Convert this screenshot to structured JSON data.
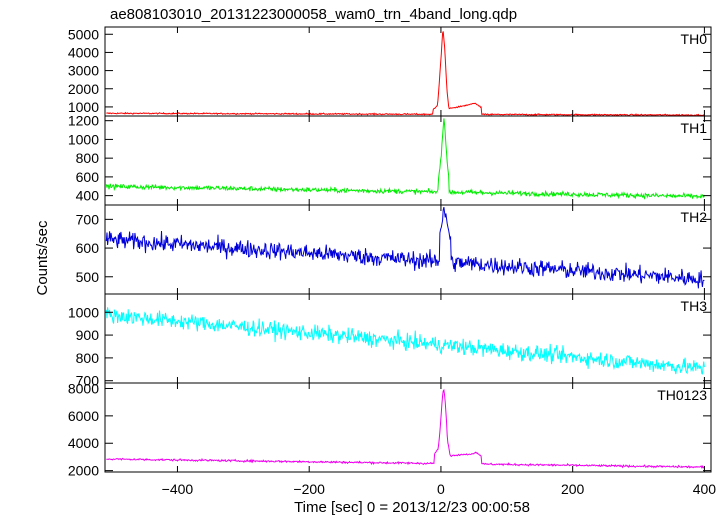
{
  "chart_data": {
    "type": "line",
    "title": "ae808103010_20131223000058_wam0_trn_4band_long.qdp",
    "xlabel": "Time [sec] 0 = 2013/12/23 00:00:58",
    "ylabel": "Counts/sec",
    "xlim": [
      -510,
      410
    ],
    "x_ticks": [
      -400,
      -200,
      0,
      200,
      400
    ],
    "x_tick_labels": [
      "−400",
      "−200",
      "0",
      "200",
      "400"
    ],
    "grid": false,
    "line_color_note": "each panel a separate series",
    "panels": [
      {
        "name": "TH0",
        "color": "#ff0000",
        "ylim": [
          500,
          5400
        ],
        "yticks": [
          1000,
          2000,
          3000,
          4000,
          5000
        ],
        "baseline_start": 650,
        "baseline_end": 550,
        "noise": 35,
        "burst": [
          {
            "t": -12,
            "v": 850
          },
          {
            "t": -5,
            "v": 1100
          },
          {
            "t": -2,
            "v": 2600
          },
          {
            "t": 1,
            "v": 4200
          },
          {
            "t": 3,
            "v": 5350
          },
          {
            "t": 6,
            "v": 4100
          },
          {
            "t": 9,
            "v": 2000
          },
          {
            "t": 12,
            "v": 900
          },
          {
            "t": 40,
            "v": 1100
          },
          {
            "t": 52,
            "v": 1200
          },
          {
            "t": 62,
            "v": 950
          }
        ]
      },
      {
        "name": "TH1",
        "color": "#00ee00",
        "ylim": [
          300,
          1250
        ],
        "yticks": [
          400,
          600,
          800,
          1000,
          1200
        ],
        "baseline_start": 500,
        "baseline_end": 390,
        "noise": 25,
        "burst": [
          {
            "t": -4,
            "v": 560
          },
          {
            "t": 0,
            "v": 800
          },
          {
            "t": 3,
            "v": 1080
          },
          {
            "t": 5,
            "v": 1240
          },
          {
            "t": 8,
            "v": 900
          },
          {
            "t": 12,
            "v": 560
          }
        ]
      },
      {
        "name": "TH2",
        "color": "#0000dd",
        "ylim": [
          440,
          750
        ],
        "yticks": [
          500,
          600,
          700
        ],
        "baseline_start": 630,
        "baseline_end": 490,
        "noise": 30,
        "burst": [
          {
            "t": -2,
            "v": 650
          },
          {
            "t": 2,
            "v": 700
          },
          {
            "t": 5,
            "v": 740
          },
          {
            "t": 9,
            "v": 680
          },
          {
            "t": 15,
            "v": 630
          }
        ]
      },
      {
        "name": "TH3",
        "color": "#00ffff",
        "ylim": [
          690,
          1080
        ],
        "yticks": [
          700,
          800,
          900,
          1000
        ],
        "baseline_start": 990,
        "baseline_end": 750,
        "noise": 35,
        "burst": []
      },
      {
        "name": "TH0123",
        "color": "#ee00ee",
        "ylim": [
          1900,
          8400
        ],
        "yticks": [
          2000,
          4000,
          6000,
          8000
        ],
        "baseline_start": 2850,
        "baseline_end": 2250,
        "noise": 70,
        "burst": [
          {
            "t": -10,
            "v": 3200
          },
          {
            "t": -4,
            "v": 3600
          },
          {
            "t": -1,
            "v": 5200
          },
          {
            "t": 2,
            "v": 7200
          },
          {
            "t": 4,
            "v": 8100
          },
          {
            "t": 7,
            "v": 6800
          },
          {
            "t": 10,
            "v": 4200
          },
          {
            "t": 14,
            "v": 3100
          },
          {
            "t": 45,
            "v": 3200
          },
          {
            "t": 53,
            "v": 3350
          },
          {
            "t": 62,
            "v": 3050
          }
        ]
      }
    ]
  }
}
